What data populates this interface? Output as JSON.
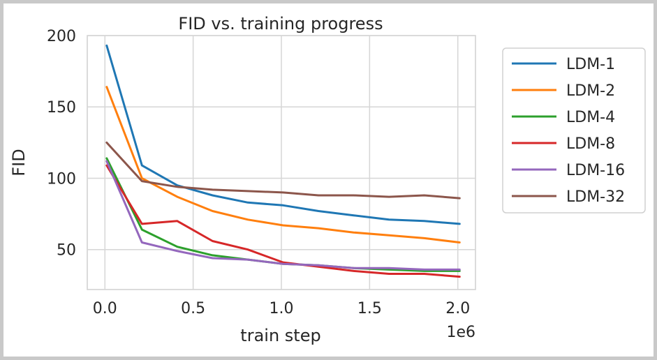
{
  "chart_data": {
    "type": "line",
    "title": "FID vs. training progress",
    "xlabel": "train step",
    "ylabel": "FID",
    "x_offset_label": "1e6",
    "x_ticks": [
      "0.0",
      "0.5",
      "1.0",
      "1.5",
      "2.0"
    ],
    "y_ticks": [
      "50",
      "100",
      "150",
      "200"
    ],
    "xlim": [
      -0.1,
      2.1
    ],
    "ylim": [
      22,
      200
    ],
    "grid": true,
    "legend_position": "outside-right",
    "x": [
      0.01,
      0.21,
      0.41,
      0.61,
      0.81,
      1.01,
      1.21,
      1.41,
      1.61,
      1.81,
      2.01
    ],
    "series": [
      {
        "name": "LDM-1",
        "color": "#1f77b4",
        "values": [
          193,
          109,
          95,
          88,
          83,
          81,
          77,
          74,
          71,
          70,
          68
        ]
      },
      {
        "name": "LDM-2",
        "color": "#ff7f0e",
        "values": [
          164,
          100,
          87,
          77,
          71,
          67,
          65,
          62,
          60,
          58,
          55
        ]
      },
      {
        "name": "LDM-4",
        "color": "#2ca02c",
        "values": [
          114,
          64,
          52,
          46,
          43,
          40,
          39,
          37,
          36,
          35,
          35
        ]
      },
      {
        "name": "LDM-8",
        "color": "#d62728",
        "values": [
          109,
          68,
          70,
          56,
          50,
          41,
          38,
          35,
          33,
          33,
          31
        ]
      },
      {
        "name": "LDM-16",
        "color": "#9467bd",
        "values": [
          112,
          55,
          49,
          44,
          43,
          40,
          39,
          37,
          37,
          36,
          36
        ]
      },
      {
        "name": "LDM-32",
        "color": "#8c564b",
        "values": [
          125,
          98,
          94,
          92,
          91,
          90,
          88,
          88,
          87,
          88,
          86
        ]
      }
    ]
  }
}
